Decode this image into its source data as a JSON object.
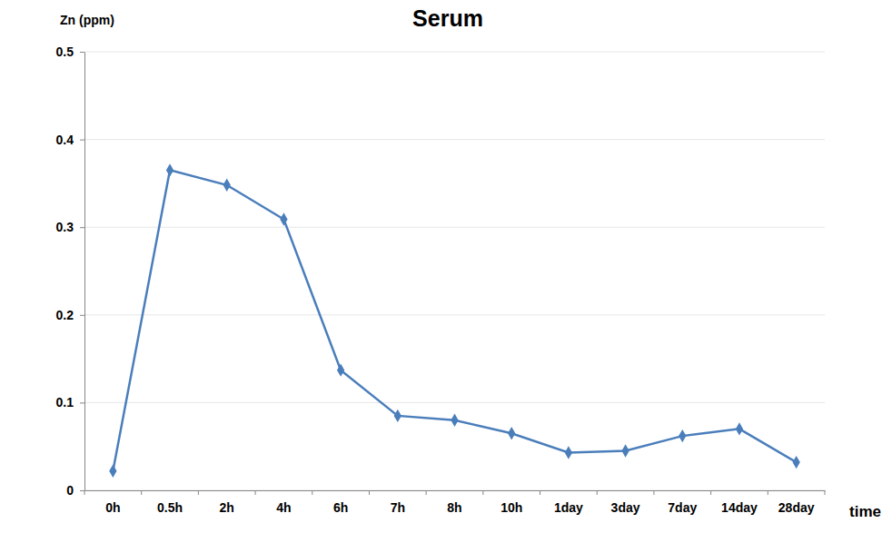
{
  "chart_data": {
    "type": "line",
    "title": "Serum",
    "y_label": "Zn (ppm)",
    "x_label": "time",
    "categories": [
      "0h",
      "0.5h",
      "2h",
      "4h",
      "6h",
      "7h",
      "8h",
      "10h",
      "1day",
      "3day",
      "7day",
      "14day",
      "28day"
    ],
    "values": [
      0.022,
      0.365,
      0.348,
      0.309,
      0.137,
      0.085,
      0.08,
      0.065,
      0.043,
      0.045,
      0.062,
      0.07,
      0.032
    ],
    "color": "#4a7ebb",
    "marker": "diamond",
    "ylim": [
      0,
      0.5
    ],
    "yticks": [
      0,
      0.1,
      0.2,
      0.3,
      0.4,
      0.5
    ],
    "grid": true
  }
}
